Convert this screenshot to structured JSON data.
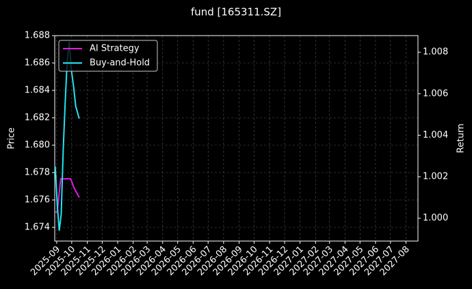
{
  "chart_data": {
    "type": "line",
    "title": "fund [165311.SZ]",
    "ylabel": "Price",
    "y2label": "Return",
    "xlim": [
      "2025-08-28",
      "2027-08-25"
    ],
    "xticks": [
      "2025-09",
      "2025-10",
      "2025-11",
      "2025-12",
      "2026-01",
      "2026-02",
      "2026-03",
      "2026-04",
      "2026-05",
      "2026-06",
      "2026-07",
      "2026-08",
      "2026-09",
      "2026-10",
      "2026-11",
      "2026-12",
      "2027-01",
      "2027-02",
      "2027-03",
      "2027-04",
      "2027-05",
      "2027-06",
      "2027-07",
      "2027-08"
    ],
    "ylim": [
      1.673,
      1.688
    ],
    "yticks": [
      {
        "value": 1.674,
        "label": "1.674"
      },
      {
        "value": 1.676,
        "label": "1.676"
      },
      {
        "value": 1.678,
        "label": "1.678"
      },
      {
        "value": 1.68,
        "label": "1.680"
      },
      {
        "value": 1.682,
        "label": "1.682"
      },
      {
        "value": 1.684,
        "label": "1.684"
      },
      {
        "value": 1.686,
        "label": "1.686"
      },
      {
        "value": 1.688,
        "label": "1.688"
      }
    ],
    "y2lim": [
      0.9989,
      1.0088
    ],
    "y2ticks": [
      {
        "value": 1.0,
        "label": "1.000"
      },
      {
        "value": 1.002,
        "label": "1.002"
      },
      {
        "value": 1.004,
        "label": "1.004"
      },
      {
        "value": 1.006,
        "label": "1.006"
      },
      {
        "value": 1.008,
        "label": "1.008"
      }
    ],
    "grid": true,
    "legend": "upper left",
    "series": [
      {
        "name": "AI Strategy",
        "color": "#e619e6",
        "axis": "y2",
        "x": [
          "2025-08-29",
          "2025-09-02",
          "2025-09-09",
          "2025-09-29",
          "2025-10-05",
          "2025-10-16"
        ],
        "values": [
          1.0003,
          1.0003,
          1.0019,
          1.0019,
          1.0015,
          1.001
        ]
      },
      {
        "name": "Buy-and-Hold",
        "color": "#22e5f0",
        "axis": "y2",
        "x": [
          "2025-08-29",
          "2025-09-02",
          "2025-09-06",
          "2025-09-10",
          "2025-09-14",
          "2025-09-18",
          "2025-09-22",
          "2025-09-26",
          "2025-09-30",
          "2025-10-05",
          "2025-10-09",
          "2025-10-16"
        ],
        "values": [
          1.0025,
          1.0007,
          0.9994,
          1.0002,
          1.0033,
          1.0056,
          1.0076,
          1.0085,
          1.0072,
          1.0063,
          1.0054,
          1.0048
        ]
      }
    ]
  }
}
